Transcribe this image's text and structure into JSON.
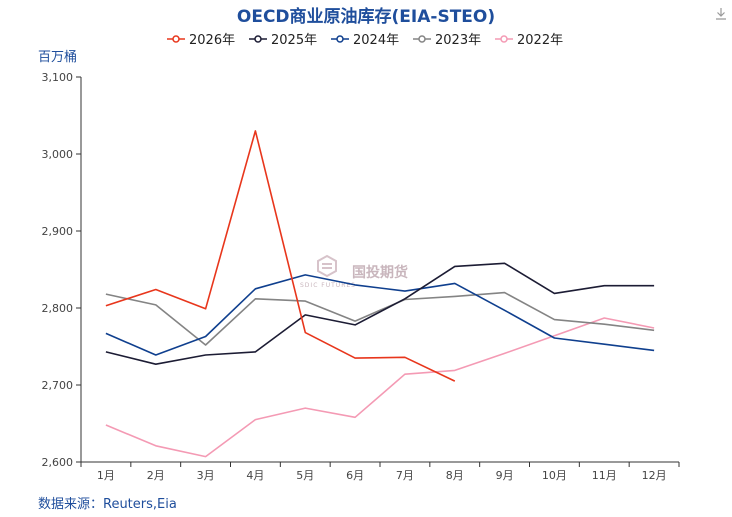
{
  "chart_data": {
    "type": "line",
    "title": "OECD商业原油库存(EIA-STEO)",
    "ylabel": "百万桶",
    "xlabel": "",
    "categories": [
      "1月",
      "2月",
      "3月",
      "4月",
      "5月",
      "6月",
      "7月",
      "8月",
      "9月",
      "10月",
      "11月",
      "12月"
    ],
    "ylim": [
      2600,
      3100
    ],
    "yticks": [
      "2,600",
      "2,700",
      "2,800",
      "2,900",
      "3,000",
      "3,100"
    ],
    "ytick_values": [
      2600,
      2700,
      2800,
      2900,
      3000,
      3100
    ],
    "grid": false,
    "legend_position": "top",
    "series": [
      {
        "name": "2026年",
        "color": "#e8361c",
        "values": [
          2803,
          2824,
          2799,
          3030,
          2768,
          2735,
          2736,
          2705,
          null,
          null,
          null,
          null
        ]
      },
      {
        "name": "2025年",
        "color": "#1c1c34",
        "values": [
          2743,
          2727,
          2739,
          2743,
          2791,
          2778,
          2812,
          2854,
          2858,
          2819,
          2829,
          2829
        ]
      },
      {
        "name": "2024年",
        "color": "#0f3f8e",
        "values": [
          2767,
          2739,
          2763,
          2825,
          2843,
          2830,
          2822,
          2832,
          2797,
          2761,
          2753,
          2745
        ]
      },
      {
        "name": "2023年",
        "color": "#848484",
        "values": [
          2818,
          2804,
          2752,
          2812,
          2809,
          2783,
          2811,
          2815,
          2820,
          2785,
          2779,
          2771
        ]
      },
      {
        "name": "2022年",
        "color": "#f49ab4",
        "values": [
          2648,
          2621,
          2607,
          2655,
          2670,
          2658,
          2714,
          2719,
          2741,
          2764,
          2787,
          2774
        ]
      }
    ]
  },
  "watermark": {
    "text": "国投期货",
    "subtext": "SDIC FUTURES"
  },
  "source": "数据来源：Reuters,Eia",
  "download_icon": "download-icon"
}
